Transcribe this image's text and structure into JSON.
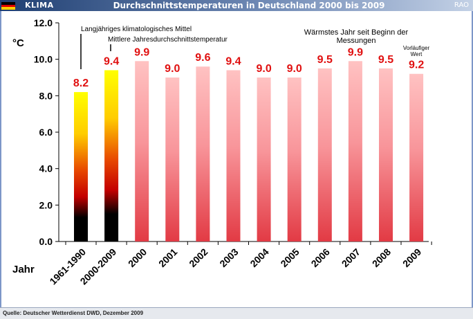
{
  "header": {
    "brand": "KLIMA",
    "title": "Durchschnittstemperaturen in Deutschland 2000 bis 2009",
    "publisher": "RAO"
  },
  "footer": {
    "source": "Quelle: Deutscher Wetterdienst DWD, Dezember 2009"
  },
  "colors": {
    "value_label": "#e01010",
    "bar_red": "#e8414a",
    "bar_pink": "#ffbcbc",
    "reference_bar_top": "#ffff00",
    "reference_bar_bottom": "#000000"
  },
  "chart_data": {
    "type": "bar",
    "unit_label": "°C",
    "xlabel": "Jahr",
    "ylim": [
      0,
      12
    ],
    "yticks": [
      "0.0",
      "2.0",
      "4.0",
      "6.0",
      "8.0",
      "10.0",
      "12.0"
    ],
    "grid": false,
    "categories": [
      "1961-1990",
      "2000-2009",
      "2000",
      "2001",
      "2002",
      "2003",
      "2004",
      "2005",
      "2006",
      "2007",
      "2008",
      "2009"
    ],
    "values": [
      8.2,
      9.4,
      9.9,
      9.0,
      9.6,
      9.4,
      9.0,
      9.0,
      9.5,
      9.9,
      9.5,
      9.2
    ],
    "value_labels": [
      "8.2",
      "9.4",
      "9.9",
      "9.0",
      "9.6",
      "9.4",
      "9.0",
      "9.0",
      "9.5",
      "9.9",
      "9.5",
      "9.2"
    ],
    "bar_styles": [
      "reference",
      "reference",
      "year",
      "year",
      "year",
      "year",
      "year",
      "year",
      "year",
      "year",
      "year",
      "year"
    ],
    "annotations": {
      "long_term_mean": "Langjähriges klimatologisches Mittel",
      "decade_mean": "Mittlere Jahresdurchschnittstemperatur",
      "warmest_line1": "Wärmstes Jahr seit Beginn der",
      "warmest_line2": "Messungen",
      "preliminary_line1": "Vorläufiger",
      "preliminary_line2": "Wert"
    }
  }
}
